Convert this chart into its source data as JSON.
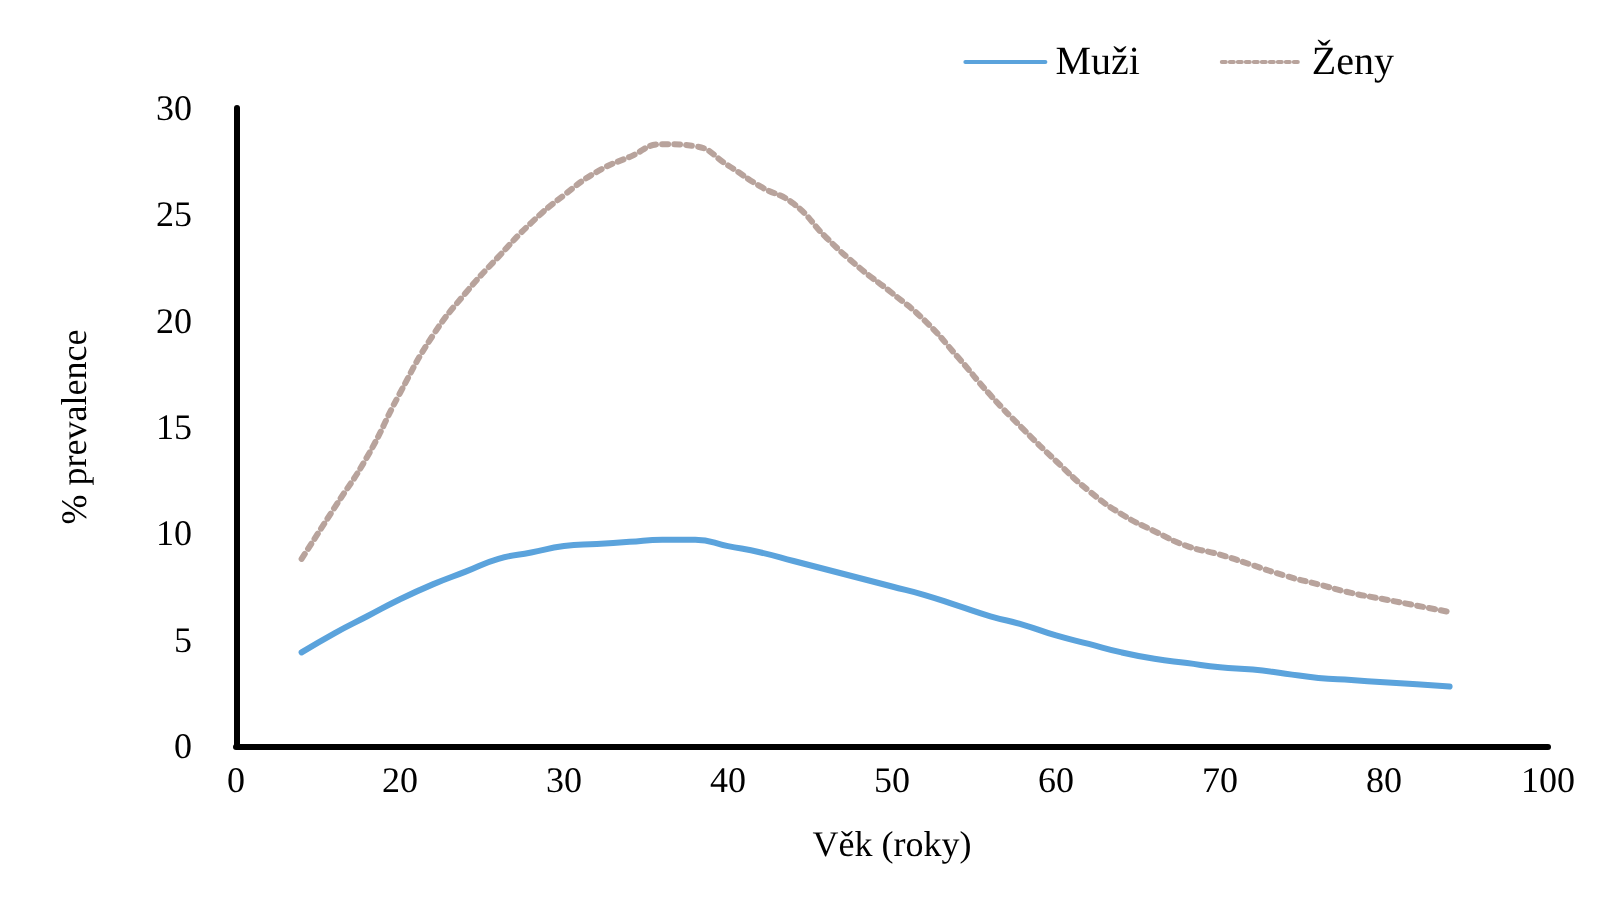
{
  "chart_data": {
    "type": "line",
    "xlabel": "Věk (roky)",
    "ylabel": "% prevalence",
    "categories": [
      "0",
      null,
      null,
      null,
      null,
      "20",
      null,
      null,
      null,
      null,
      "30",
      null,
      null,
      null,
      null,
      "40",
      null,
      null,
      null,
      null,
      "50",
      null,
      null,
      null,
      null,
      "60",
      null,
      null,
      null,
      null,
      "70",
      null,
      null,
      null,
      null,
      "80",
      null,
      null,
      null,
      null,
      "100"
    ],
    "ylim": [
      0,
      30
    ],
    "yticks": [
      0,
      5,
      10,
      15,
      20,
      25,
      30
    ],
    "grid": false,
    "legend": "top right",
    "marker": "none",
    "series": [
      {
        "name": "Muži",
        "color": "#5ba3dc",
        "line_style": "solid",
        "values": [
          null,
          null,
          4.4,
          5.3,
          6.1,
          6.9,
          7.6,
          8.2,
          8.8,
          9.1,
          9.4,
          9.5,
          9.6,
          9.7,
          9.7,
          9.4,
          9.1,
          8.7,
          8.3,
          7.9,
          7.5,
          7.1,
          6.6,
          6.1,
          5.7,
          5.2,
          4.8,
          4.4,
          4.1,
          3.9,
          3.7,
          3.6,
          3.4,
          3.2,
          3.1,
          3.0,
          2.9,
          2.8,
          null,
          null,
          null
        ]
      },
      {
        "name": "Ženy",
        "color": "#b8a39c",
        "line_style": "dotted",
        "values": [
          null,
          null,
          8.8,
          11.2,
          13.6,
          16.6,
          19.3,
          21.3,
          23.0,
          24.6,
          25.9,
          27.0,
          27.7,
          28.3,
          28.2,
          27.3,
          26.3,
          25.5,
          23.9,
          22.5,
          21.3,
          20.0,
          18.3,
          16.5,
          14.9,
          13.4,
          12.0,
          10.9,
          10.1,
          9.4,
          9.0,
          8.5,
          8.0,
          7.6,
          7.2,
          6.9,
          6.6,
          6.3,
          null,
          null,
          null
        ]
      }
    ]
  }
}
